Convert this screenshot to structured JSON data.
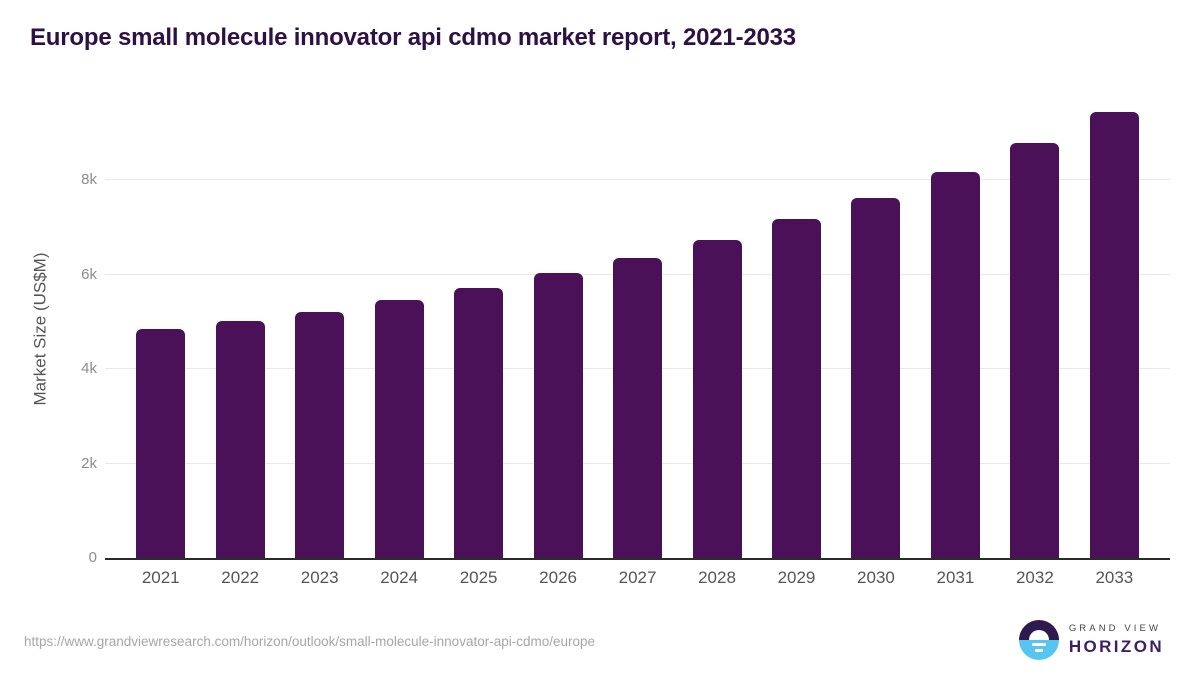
{
  "page": {
    "title": "Europe small molecule innovator api cdmo market report, 2021-2033"
  },
  "chart_data": {
    "type": "bar",
    "title": "Europe small molecule innovator api cdmo market report, 2021-2033",
    "categories": [
      "2021",
      "2022",
      "2023",
      "2024",
      "2025",
      "2026",
      "2027",
      "2028",
      "2029",
      "2030",
      "2031",
      "2032",
      "2033"
    ],
    "values": [
      4860,
      5020,
      5210,
      5460,
      5720,
      6040,
      6350,
      6740,
      7180,
      7620,
      8170,
      8780,
      9450
    ],
    "xlabel": "",
    "ylabel": "Market Size (US$M)",
    "ylim": [
      0,
      9700
    ],
    "yticks": [
      {
        "value": 0,
        "label": "0"
      },
      {
        "value": 2000,
        "label": "2k"
      },
      {
        "value": 4000,
        "label": "4k"
      },
      {
        "value": 6000,
        "label": "6k"
      },
      {
        "value": 8000,
        "label": "8k"
      }
    ],
    "grid": true,
    "legend": false,
    "bar_color": "#4a1158"
  },
  "footer": {
    "source_url": "https://www.grandviewresearch.com/horizon/outlook/small-molecule-innovator-api-cdmo/europe",
    "logo": {
      "brand_top": "GRAND VIEW",
      "brand_bottom": "HORIZON",
      "icon": "sunrise-icon",
      "icon_top_color": "#2e1b4e",
      "icon_bottom_color": "#56c6f0"
    }
  },
  "colors": {
    "title": "#2e1144",
    "bar": "#4a1158",
    "axis_line": "#2b2b2b",
    "gridline": "#e8e8e8",
    "tick_label": "#8c8c8c",
    "x_label": "#555555",
    "url_text": "#a6a6a6"
  }
}
